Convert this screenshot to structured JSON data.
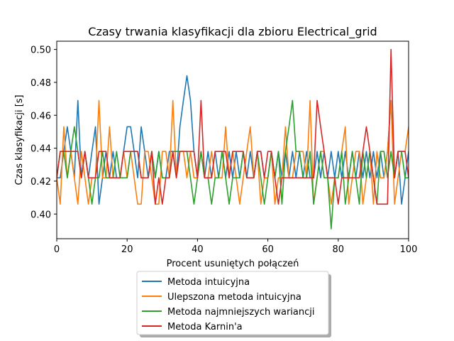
{
  "chart_data": {
    "type": "line",
    "title": "Czasy trwania klasyfikacji dla zbioru Electrical_grid",
    "xlabel": "Procent usuniętych połączeń",
    "ylabel": "Czas klasyfikacji [s]",
    "xlim": [
      0,
      100
    ],
    "ylim": [
      0.385,
      0.505
    ],
    "xticks": [
      0,
      20,
      40,
      60,
      80,
      100
    ],
    "yticks": [
      0.4,
      0.42,
      0.44,
      0.46,
      0.48,
      0.5
    ],
    "ytick_labels": [
      "0.40",
      "0.42",
      "0.44",
      "0.46",
      "0.48",
      "0.50"
    ],
    "grid": false,
    "legend_position": "below-center",
    "series": [
      {
        "name": "Metoda intuicyjna",
        "color": "#1f77b4",
        "values": [
          0.422,
          0.422,
          0.438,
          0.453,
          0.438,
          0.422,
          0.469,
          0.422,
          0.438,
          0.422,
          0.438,
          0.453,
          0.406,
          0.422,
          0.438,
          0.422,
          0.438,
          0.422,
          0.422,
          0.438,
          0.453,
          0.453,
          0.438,
          0.422,
          0.453,
          0.438,
          0.422,
          0.438,
          0.422,
          0.438,
          0.422,
          0.422,
          0.438,
          0.438,
          0.422,
          0.453,
          0.469,
          0.484,
          0.469,
          0.438,
          0.422,
          0.438,
          0.422,
          0.438,
          0.422,
          0.438,
          0.422,
          0.438,
          0.422,
          0.438,
          0.422,
          0.438,
          0.422,
          0.438,
          0.422,
          0.438,
          0.422,
          0.438,
          0.438,
          0.422,
          0.422,
          0.438,
          0.422,
          0.438,
          0.422,
          0.438,
          0.422,
          0.438,
          0.422,
          0.438,
          0.422,
          0.438,
          0.422,
          0.422,
          0.438,
          0.422,
          0.438,
          0.422,
          0.438,
          0.422,
          0.438,
          0.422,
          0.438,
          0.422,
          0.438,
          0.422,
          0.438,
          0.422,
          0.438,
          0.422,
          0.438,
          0.422,
          0.438,
          0.422,
          0.438,
          0.469,
          0.422,
          0.438,
          0.406,
          0.422,
          0.438
        ]
      },
      {
        "name": "Ulepszona metoda intuicyjna",
        "color": "#ff7f0e",
        "values": [
          0.422,
          0.406,
          0.453,
          0.422,
          0.438,
          0.422,
          0.406,
          0.438,
          0.422,
          0.406,
          0.422,
          0.422,
          0.469,
          0.422,
          0.422,
          0.453,
          0.422,
          0.422,
          0.422,
          0.438,
          0.422,
          0.438,
          0.422,
          0.406,
          0.406,
          0.438,
          0.438,
          0.422,
          0.406,
          0.406,
          0.438,
          0.438,
          0.422,
          0.469,
          0.422,
          0.438,
          0.438,
          0.422,
          0.438,
          0.422,
          0.422,
          0.438,
          0.422,
          0.422,
          0.438,
          0.422,
          0.422,
          0.422,
          0.453,
          0.422,
          0.438,
          0.422,
          0.406,
          0.422,
          0.438,
          0.453,
          0.422,
          0.438,
          0.406,
          0.422,
          0.422,
          0.438,
          0.406,
          0.422,
          0.422,
          0.453,
          0.422,
          0.422,
          0.438,
          0.438,
          0.438,
          0.422,
          0.469,
          0.406,
          0.422,
          0.438,
          0.438,
          0.422,
          0.406,
          0.422,
          0.422,
          0.438,
          0.453,
          0.406,
          0.422,
          0.438,
          0.438,
          0.406,
          0.422,
          0.438,
          0.406,
          0.438,
          0.422,
          0.422,
          0.438,
          0.469,
          0.406,
          0.422,
          0.438,
          0.438,
          0.453
        ]
      },
      {
        "name": "Metoda najmniejszych wariancji",
        "color": "#2ca02c",
        "values": [
          0.422,
          0.438,
          0.438,
          0.422,
          0.438,
          0.453,
          0.438,
          0.422,
          0.438,
          0.422,
          0.406,
          0.422,
          0.422,
          0.438,
          0.422,
          0.422,
          0.422,
          0.438,
          0.422,
          0.422,
          0.422,
          0.438,
          0.438,
          0.438,
          0.422,
          0.422,
          0.422,
          0.438,
          0.422,
          0.438,
          0.422,
          0.422,
          0.422,
          0.438,
          0.438,
          0.438,
          0.438,
          0.438,
          0.422,
          0.406,
          0.422,
          0.438,
          0.422,
          0.422,
          0.406,
          0.422,
          0.422,
          0.438,
          0.422,
          0.406,
          0.422,
          0.422,
          0.422,
          0.438,
          0.422,
          0.422,
          0.422,
          0.438,
          0.422,
          0.406,
          0.422,
          0.438,
          0.422,
          0.438,
          0.406,
          0.438,
          0.453,
          0.469,
          0.438,
          0.438,
          0.422,
          0.422,
          0.438,
          0.406,
          0.422,
          0.438,
          0.422,
          0.422,
          0.391,
          0.422,
          0.422,
          0.438,
          0.406,
          0.422,
          0.438,
          0.422,
          0.406,
          0.438,
          0.422,
          0.438,
          0.422,
          0.406,
          0.438,
          0.438,
          0.422,
          0.438,
          0.422,
          0.438,
          0.438,
          0.422,
          0.422
        ]
      },
      {
        "name": "Metoda Karnin'a",
        "color": "#d62728",
        "values": [
          0.422,
          0.438,
          0.438,
          0.438,
          0.438,
          0.438,
          0.438,
          0.422,
          0.438,
          0.422,
          0.422,
          0.422,
          0.438,
          0.438,
          0.438,
          0.422,
          0.422,
          0.422,
          0.422,
          0.438,
          0.438,
          0.438,
          0.438,
          0.438,
          0.422,
          0.422,
          0.422,
          0.438,
          0.406,
          0.422,
          0.406,
          0.422,
          0.422,
          0.438,
          0.422,
          0.438,
          0.438,
          0.438,
          0.438,
          0.438,
          0.422,
          0.469,
          0.422,
          0.422,
          0.422,
          0.438,
          0.438,
          0.438,
          0.438,
          0.422,
          0.438,
          0.438,
          0.438,
          0.438,
          0.422,
          0.422,
          0.422,
          0.438,
          0.438,
          0.422,
          0.438,
          0.438,
          0.422,
          0.406,
          0.422,
          0.422,
          0.422,
          0.422,
          0.422,
          0.422,
          0.422,
          0.422,
          0.422,
          0.422,
          0.469,
          0.453,
          0.438,
          0.422,
          0.422,
          0.422,
          0.406,
          0.422,
          0.422,
          0.422,
          0.422,
          0.422,
          0.422,
          0.438,
          0.453,
          0.438,
          0.422,
          0.406,
          0.406,
          0.406,
          0.406,
          0.5,
          0.422,
          0.438,
          0.438,
          0.438,
          0.422
        ]
      }
    ]
  }
}
